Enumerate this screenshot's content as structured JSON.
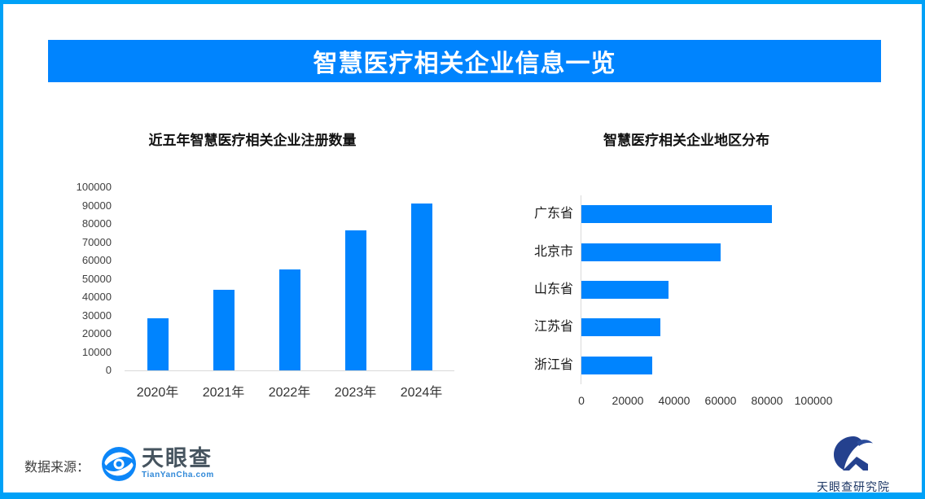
{
  "banner": {
    "title": "智慧医疗相关企业信息一览"
  },
  "colors": {
    "border": "#00A1F7",
    "banner_bg": "#0084FE",
    "bar": "#0084FE",
    "axis_line": "#D9D9D9"
  },
  "chart_data": [
    {
      "type": "bar",
      "orientation": "vertical",
      "title": "近五年智慧医疗相关企业注册数量",
      "categories": [
        "2020年",
        "2021年",
        "2022年",
        "2023年",
        "2024年"
      ],
      "values": [
        28500,
        44000,
        55000,
        76500,
        91000
      ],
      "ylim": [
        0,
        100000
      ],
      "y_ticks": [
        0,
        10000,
        20000,
        30000,
        40000,
        50000,
        60000,
        70000,
        80000,
        90000,
        100000
      ],
      "grid": false,
      "legend": null,
      "bar_color": "#0084FE"
    },
    {
      "type": "bar",
      "orientation": "horizontal",
      "title": "智慧医疗相关企业地区分布",
      "categories": [
        "广东省",
        "北京市",
        "山东省",
        "江苏省",
        "浙江省"
      ],
      "values": [
        82000,
        60000,
        37500,
        34000,
        30500
      ],
      "xlim": [
        0,
        100000
      ],
      "x_ticks": [
        0,
        20000,
        40000,
        60000,
        80000,
        100000
      ],
      "grid": false,
      "legend": null,
      "bar_color": "#0084FE"
    }
  ],
  "footer": {
    "source_label": "数据来源：",
    "tianyancha": {
      "name": "天眼查",
      "domain": "TianYanCha.com"
    },
    "research": {
      "name": "天眼查研究院"
    }
  }
}
